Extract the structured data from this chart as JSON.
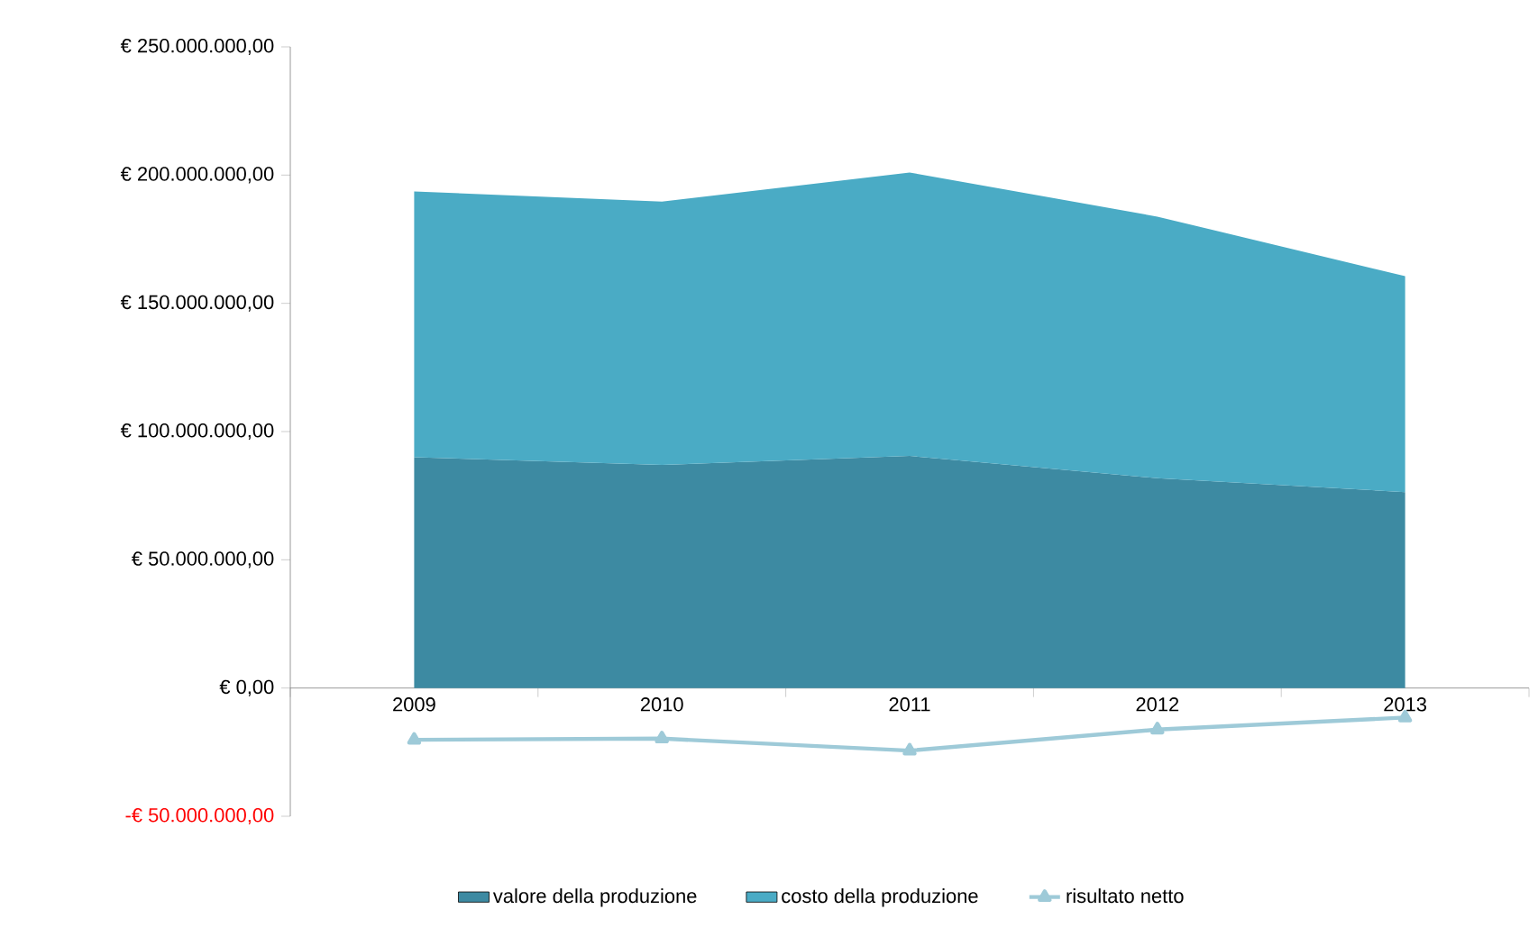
{
  "chart_data": {
    "type": "area",
    "stacked": true,
    "categories": [
      "2009",
      "2010",
      "2011",
      "2012",
      "2013"
    ],
    "series": [
      {
        "name": "valore della produzione",
        "color": "#3d8aa2",
        "values": [
          90000000,
          87000000,
          90500000,
          81800000,
          76400000
        ]
      },
      {
        "name": "costo della produzione",
        "color": "#4aabc5",
        "values": [
          103600000,
          102700000,
          110500000,
          102000000,
          84200000
        ]
      },
      {
        "name": "risultato netto",
        "type": "line",
        "marker": "triangle",
        "color": "#9ecad8",
        "values": [
          -20200000,
          -19700000,
          -24400000,
          -16200000,
          -11500000
        ]
      }
    ],
    "ylim": [
      -50000000,
      250000000
    ],
    "yticks": [
      {
        "value": 250000000,
        "label": "€ 250.000.000,00"
      },
      {
        "value": 200000000,
        "label": "€ 200.000.000,00"
      },
      {
        "value": 150000000,
        "label": "€ 150.000.000,00"
      },
      {
        "value": 100000000,
        "label": "€ 100.000.000,00"
      },
      {
        "value": 50000000,
        "label": "€ 50.000.000,00"
      },
      {
        "value": 0,
        "label": "€ 0,00"
      },
      {
        "value": -50000000,
        "label": "-€ 50.000.000,00"
      }
    ],
    "legend": "bottom"
  }
}
